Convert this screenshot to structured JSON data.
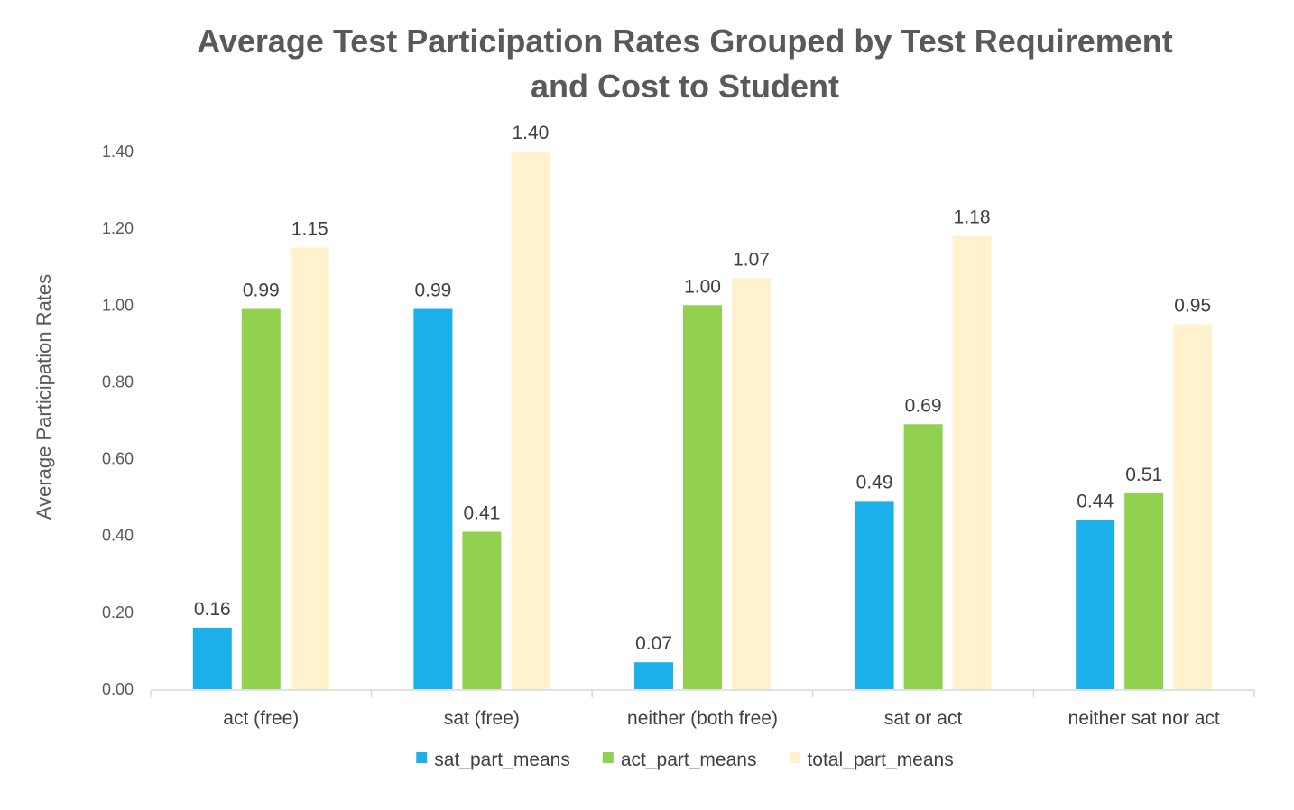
{
  "chart_data": {
    "type": "bar",
    "title_lines": [
      "Average Test Participation Rates Grouped by Test Requirement",
      "and Cost to Student"
    ],
    "xlabel": "",
    "ylabel": "Average Participation Rates",
    "ylim": [
      0,
      1.4
    ],
    "yticks": [
      "0.00",
      "0.20",
      "0.40",
      "0.60",
      "0.80",
      "1.00",
      "1.20",
      "1.40"
    ],
    "grid": false,
    "legend_position": "bottom",
    "categories": [
      "act (free)",
      "sat (free)",
      "neither (both free)",
      "sat or act",
      "neither sat nor act"
    ],
    "series": [
      {
        "name": "sat_part_means",
        "color": "#1cb0ea",
        "values": [
          0.16,
          0.99,
          0.07,
          0.49,
          0.44
        ],
        "labels": [
          "0.16",
          "0.99",
          "0.07",
          "0.49",
          "0.44"
        ]
      },
      {
        "name": "act_part_means",
        "color": "#92d050",
        "values": [
          0.99,
          0.41,
          1.0,
          0.69,
          0.51
        ],
        "labels": [
          "0.99",
          "0.41",
          "1.00",
          "0.69",
          "0.51"
        ]
      },
      {
        "name": "total_part_means",
        "color": "#fff2cc",
        "values": [
          1.15,
          1.4,
          1.07,
          1.18,
          0.95
        ],
        "labels": [
          "1.15",
          "1.40",
          "1.07",
          "1.18",
          "0.95"
        ]
      }
    ]
  }
}
